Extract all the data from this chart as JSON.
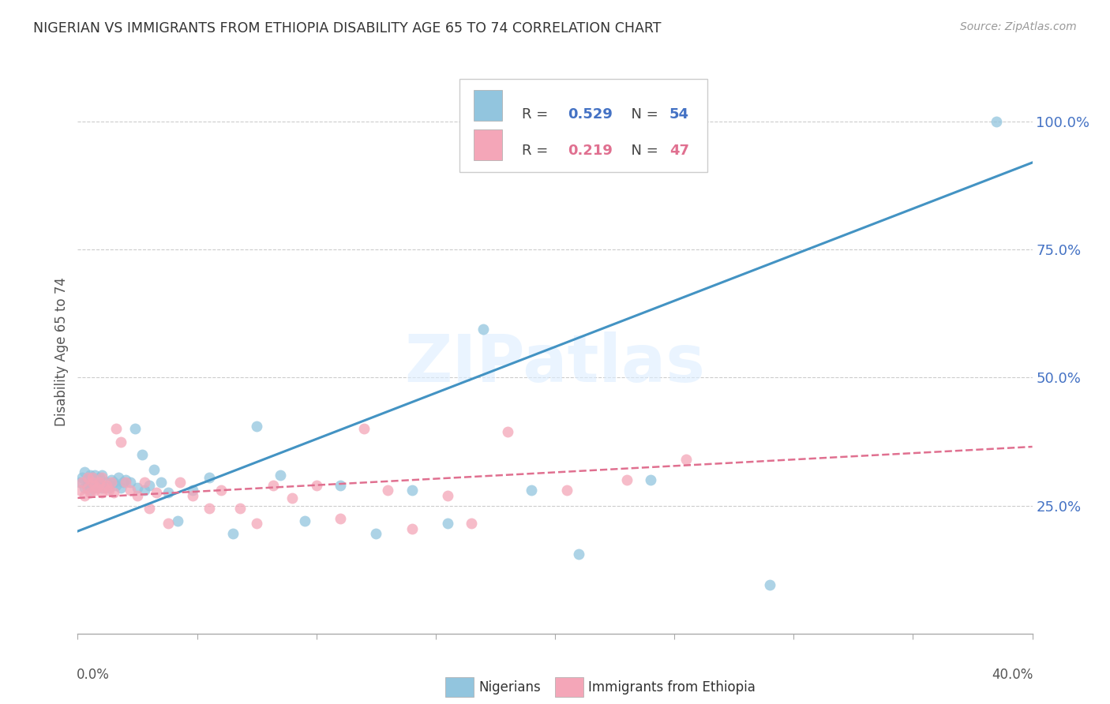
{
  "title": "NIGERIAN VS IMMIGRANTS FROM ETHIOPIA DISABILITY AGE 65 TO 74 CORRELATION CHART",
  "source": "Source: ZipAtlas.com",
  "ylabel": "Disability Age 65 to 74",
  "legend_blue_R": "0.529",
  "legend_blue_N": "54",
  "legend_pink_R": "0.219",
  "legend_pink_N": "47",
  "blue_color": "#92c5de",
  "pink_color": "#f4a6b8",
  "blue_line_color": "#4393c3",
  "pink_line_color": "#e07090",
  "xlim": [
    0.0,
    0.4
  ],
  "ylim": [
    0.0,
    1.1
  ],
  "ytick_vals": [
    0.25,
    0.5,
    0.75,
    1.0
  ],
  "ytick_labels": [
    "25.0%",
    "50.0%",
    "75.0%",
    "100.0%"
  ],
  "blue_line_x": [
    0.0,
    0.4
  ],
  "blue_line_y": [
    0.2,
    0.92
  ],
  "pink_line_x": [
    0.0,
    0.4
  ],
  "pink_line_y": [
    0.265,
    0.365
  ],
  "blue_scatter_x": [
    0.001,
    0.002,
    0.003,
    0.003,
    0.004,
    0.004,
    0.005,
    0.005,
    0.006,
    0.006,
    0.007,
    0.007,
    0.008,
    0.008,
    0.009,
    0.009,
    0.01,
    0.01,
    0.011,
    0.012,
    0.013,
    0.014,
    0.015,
    0.016,
    0.017,
    0.018,
    0.019,
    0.02,
    0.022,
    0.024,
    0.025,
    0.027,
    0.028,
    0.03,
    0.032,
    0.035,
    0.038,
    0.042,
    0.048,
    0.055,
    0.065,
    0.075,
    0.085,
    0.095,
    0.11,
    0.125,
    0.14,
    0.155,
    0.17,
    0.19,
    0.21,
    0.24,
    0.29,
    0.385
  ],
  "blue_scatter_y": [
    0.295,
    0.305,
    0.285,
    0.315,
    0.29,
    0.3,
    0.28,
    0.31,
    0.295,
    0.305,
    0.285,
    0.31,
    0.29,
    0.3,
    0.295,
    0.305,
    0.285,
    0.31,
    0.29,
    0.295,
    0.285,
    0.3,
    0.295,
    0.29,
    0.305,
    0.285,
    0.295,
    0.3,
    0.295,
    0.4,
    0.285,
    0.35,
    0.28,
    0.29,
    0.32,
    0.295,
    0.275,
    0.22,
    0.28,
    0.305,
    0.195,
    0.405,
    0.31,
    0.22,
    0.29,
    0.195,
    0.28,
    0.215,
    0.595,
    0.28,
    0.155,
    0.3,
    0.095,
    1.0
  ],
  "pink_scatter_x": [
    0.001,
    0.002,
    0.003,
    0.004,
    0.004,
    0.005,
    0.006,
    0.006,
    0.007,
    0.007,
    0.008,
    0.009,
    0.01,
    0.01,
    0.011,
    0.012,
    0.013,
    0.014,
    0.015,
    0.016,
    0.018,
    0.02,
    0.022,
    0.025,
    0.028,
    0.03,
    0.033,
    0.038,
    0.043,
    0.048,
    0.055,
    0.06,
    0.068,
    0.075,
    0.082,
    0.09,
    0.1,
    0.11,
    0.12,
    0.13,
    0.14,
    0.155,
    0.165,
    0.18,
    0.205,
    0.23,
    0.255
  ],
  "pink_scatter_y": [
    0.28,
    0.295,
    0.27,
    0.305,
    0.285,
    0.275,
    0.295,
    0.305,
    0.28,
    0.29,
    0.285,
    0.295,
    0.275,
    0.305,
    0.285,
    0.29,
    0.28,
    0.295,
    0.275,
    0.4,
    0.375,
    0.295,
    0.28,
    0.27,
    0.295,
    0.245,
    0.275,
    0.215,
    0.295,
    0.27,
    0.245,
    0.28,
    0.245,
    0.215,
    0.29,
    0.265,
    0.29,
    0.225,
    0.4,
    0.28,
    0.205,
    0.27,
    0.215,
    0.395,
    0.28,
    0.3,
    0.34
  ]
}
